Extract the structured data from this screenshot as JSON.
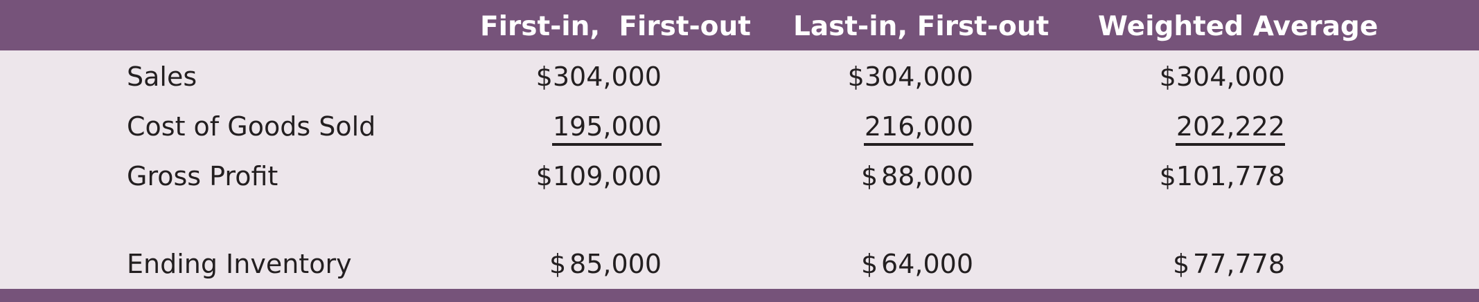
{
  "headers": {
    "fifo": "First-in,  First-out",
    "lifo": "Last-in, First-out",
    "weighted": "Weighted Average"
  },
  "rows": {
    "sales": {
      "label": "Sales",
      "fifo": "$304,000",
      "lifo": "$304,000",
      "weighted": "$304,000"
    },
    "cogs": {
      "label": "Cost of Goods Sold",
      "fifo": "195,000",
      "lifo": "216,000",
      "weighted": "202,222"
    },
    "gross_profit": {
      "label": "Gross Profit",
      "fifo": "$109,000",
      "lifo_symbol": "$",
      "lifo_amount": "88,000",
      "weighted": "$101,778"
    },
    "ending_inventory": {
      "label": "Ending Inventory",
      "fifo_symbol": "$",
      "fifo_amount": "85,000",
      "lifo_symbol": "$",
      "lifo_amount": "64,000",
      "weighted_symbol": "$",
      "weighted_amount": "77,778"
    }
  },
  "colors": {
    "header_background": "#76537a",
    "table_background": "#ede6eb",
    "text": "#231f20"
  }
}
